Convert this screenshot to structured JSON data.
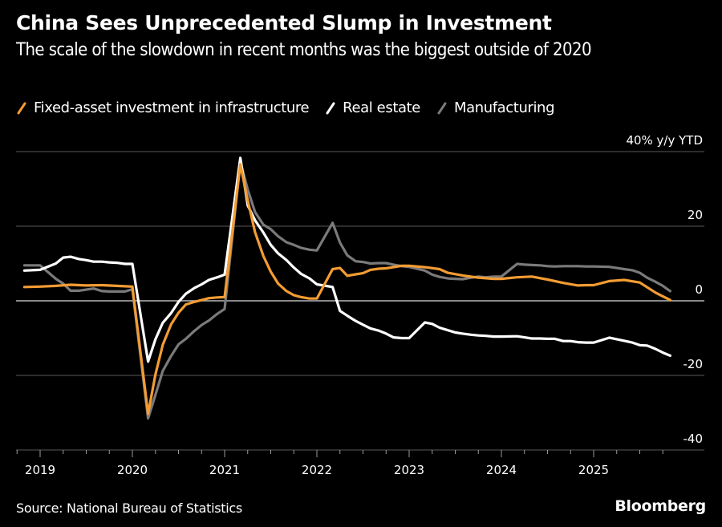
{
  "header": {
    "title": "China Sees Unprecedented Slump in Investment",
    "subtitle": "The scale of the slowdown in recent months was the biggest outside of 2020"
  },
  "footer": {
    "source": "Source: National Bureau of Statistics",
    "brand": "Bloomberg"
  },
  "chart_data": {
    "type": "line",
    "title": "China Sees Unprecedented Slump in Investment",
    "subtitle": "The scale of the slowdown in recent months was the biggest outside of 2020",
    "xlabel": "",
    "ylabel": "% y/y YTD",
    "y_unit_label": "40% y/y YTD",
    "ylim": [
      -40,
      40
    ],
    "y_ticks": [
      40,
      20,
      0,
      -20,
      -40
    ],
    "y_tick_labels": [
      "40% y/y YTD",
      "20",
      "0",
      "-20",
      "-40"
    ],
    "xlim": [
      2018.75,
      2026.1
    ],
    "x_ticks": [
      2019,
      2020,
      2021,
      2022,
      2023,
      2024,
      2025
    ],
    "x_tick_labels": [
      "2019",
      "2020",
      "2021",
      "2022",
      "2023",
      "2024",
      "2025"
    ],
    "grid": true,
    "legend_position": "top-left",
    "series": [
      {
        "name": "Fixed-asset investment in infrastructure",
        "color": "#f39c33",
        "points": [
          [
            2018.83,
            3.7
          ],
          [
            2019.0,
            3.8
          ],
          [
            2019.17,
            4.0
          ],
          [
            2019.33,
            4.3
          ],
          [
            2019.5,
            4.1
          ],
          [
            2019.67,
            4.2
          ],
          [
            2019.83,
            4.0
          ],
          [
            2019.92,
            3.9
          ],
          [
            2020.0,
            3.8
          ],
          [
            2020.17,
            -30.3
          ],
          [
            2020.25,
            -19.7
          ],
          [
            2020.33,
            -11.8
          ],
          [
            2020.42,
            -6.3
          ],
          [
            2020.5,
            -3.2
          ],
          [
            2020.58,
            -1.0
          ],
          [
            2020.67,
            -0.3
          ],
          [
            2020.75,
            0.2
          ],
          [
            2020.83,
            0.7
          ],
          [
            2020.92,
            0.9
          ],
          [
            2021.0,
            1.0
          ],
          [
            2021.17,
            36.6
          ],
          [
            2021.25,
            26.9
          ],
          [
            2021.33,
            18.4
          ],
          [
            2021.42,
            12.0
          ],
          [
            2021.5,
            7.8
          ],
          [
            2021.58,
            4.6
          ],
          [
            2021.67,
            2.6
          ],
          [
            2021.75,
            1.5
          ],
          [
            2021.83,
            1.0
          ],
          [
            2021.92,
            0.6
          ],
          [
            2022.0,
            0.6
          ],
          [
            2022.17,
            8.5
          ],
          [
            2022.25,
            8.8
          ],
          [
            2022.33,
            6.7
          ],
          [
            2022.42,
            7.1
          ],
          [
            2022.5,
            7.4
          ],
          [
            2022.58,
            8.3
          ],
          [
            2022.67,
            8.6
          ],
          [
            2022.75,
            8.7
          ],
          [
            2022.83,
            9.0
          ],
          [
            2022.92,
            9.4
          ],
          [
            2023.0,
            9.4
          ],
          [
            2023.17,
            9.0
          ],
          [
            2023.33,
            8.5
          ],
          [
            2023.42,
            7.5
          ],
          [
            2023.58,
            6.8
          ],
          [
            2023.75,
            6.2
          ],
          [
            2023.92,
            5.9
          ],
          [
            2024.0,
            5.9
          ],
          [
            2024.17,
            6.3
          ],
          [
            2024.33,
            6.5
          ],
          [
            2024.5,
            5.7
          ],
          [
            2024.67,
            4.8
          ],
          [
            2024.83,
            4.1
          ],
          [
            2024.92,
            4.2
          ],
          [
            2025.0,
            4.2
          ],
          [
            2025.17,
            5.3
          ],
          [
            2025.33,
            5.6
          ],
          [
            2025.5,
            4.9
          ],
          [
            2025.67,
            2.2
          ],
          [
            2025.83,
            0.2
          ]
        ]
      },
      {
        "name": "Real estate",
        "color": "#ffffff",
        "points": [
          [
            2018.83,
            8.1
          ],
          [
            2019.0,
            8.3
          ],
          [
            2019.17,
            10.0
          ],
          [
            2019.25,
            11.6
          ],
          [
            2019.33,
            11.8
          ],
          [
            2019.42,
            11.2
          ],
          [
            2019.5,
            10.9
          ],
          [
            2019.58,
            10.5
          ],
          [
            2019.67,
            10.5
          ],
          [
            2019.75,
            10.3
          ],
          [
            2019.83,
            10.2
          ],
          [
            2019.92,
            9.9
          ],
          [
            2020.0,
            9.9
          ],
          [
            2020.17,
            -16.3
          ],
          [
            2020.25,
            -10.3
          ],
          [
            2020.33,
            -5.9
          ],
          [
            2020.42,
            -3.3
          ],
          [
            2020.5,
            -0.3
          ],
          [
            2020.58,
            1.9
          ],
          [
            2020.67,
            3.4
          ],
          [
            2020.75,
            4.4
          ],
          [
            2020.83,
            5.6
          ],
          [
            2020.92,
            6.3
          ],
          [
            2021.0,
            7.0
          ],
          [
            2021.17,
            38.3
          ],
          [
            2021.25,
            25.6
          ],
          [
            2021.33,
            21.6
          ],
          [
            2021.42,
            18.3
          ],
          [
            2021.5,
            15.0
          ],
          [
            2021.58,
            12.7
          ],
          [
            2021.67,
            10.9
          ],
          [
            2021.75,
            8.9
          ],
          [
            2021.83,
            7.2
          ],
          [
            2021.92,
            6.0
          ],
          [
            2022.0,
            4.4
          ],
          [
            2022.17,
            3.7
          ],
          [
            2022.25,
            -2.7
          ],
          [
            2022.33,
            -4.0
          ],
          [
            2022.42,
            -5.4
          ],
          [
            2022.5,
            -6.4
          ],
          [
            2022.58,
            -7.4
          ],
          [
            2022.67,
            -8.0
          ],
          [
            2022.75,
            -8.8
          ],
          [
            2022.83,
            -9.8
          ],
          [
            2022.92,
            -10.0
          ],
          [
            2023.0,
            -10.0
          ],
          [
            2023.17,
            -5.8
          ],
          [
            2023.25,
            -6.2
          ],
          [
            2023.33,
            -7.2
          ],
          [
            2023.42,
            -7.9
          ],
          [
            2023.5,
            -8.5
          ],
          [
            2023.58,
            -8.8
          ],
          [
            2023.67,
            -9.1
          ],
          [
            2023.75,
            -9.3
          ],
          [
            2023.83,
            -9.4
          ],
          [
            2023.92,
            -9.6
          ],
          [
            2024.0,
            -9.6
          ],
          [
            2024.17,
            -9.5
          ],
          [
            2024.25,
            -9.8
          ],
          [
            2024.33,
            -10.1
          ],
          [
            2024.42,
            -10.1
          ],
          [
            2024.5,
            -10.2
          ],
          [
            2024.58,
            -10.2
          ],
          [
            2024.67,
            -10.8
          ],
          [
            2024.75,
            -10.8
          ],
          [
            2024.83,
            -11.1
          ],
          [
            2024.92,
            -11.2
          ],
          [
            2025.0,
            -11.2
          ],
          [
            2025.17,
            -9.9
          ],
          [
            2025.25,
            -10.3
          ],
          [
            2025.33,
            -10.7
          ],
          [
            2025.42,
            -11.2
          ],
          [
            2025.5,
            -11.9
          ],
          [
            2025.58,
            -12.0
          ],
          [
            2025.67,
            -12.9
          ],
          [
            2025.75,
            -13.9
          ],
          [
            2025.83,
            -14.7
          ]
        ]
      },
      {
        "name": "Manufacturing",
        "color": "#7a7a7a",
        "points": [
          [
            2018.83,
            9.5
          ],
          [
            2019.0,
            9.5
          ],
          [
            2019.17,
            5.9
          ],
          [
            2019.25,
            4.6
          ],
          [
            2019.33,
            2.7
          ],
          [
            2019.42,
            2.7
          ],
          [
            2019.5,
            3.0
          ],
          [
            2019.58,
            3.3
          ],
          [
            2019.67,
            2.6
          ],
          [
            2019.75,
            2.5
          ],
          [
            2019.83,
            2.5
          ],
          [
            2019.92,
            2.5
          ],
          [
            2020.0,
            3.1
          ],
          [
            2020.17,
            -31.5
          ],
          [
            2020.25,
            -25.2
          ],
          [
            2020.33,
            -18.8
          ],
          [
            2020.42,
            -14.8
          ],
          [
            2020.5,
            -11.7
          ],
          [
            2020.58,
            -10.2
          ],
          [
            2020.67,
            -8.1
          ],
          [
            2020.75,
            -6.5
          ],
          [
            2020.83,
            -5.3
          ],
          [
            2020.92,
            -3.5
          ],
          [
            2021.0,
            -2.2
          ],
          [
            2021.17,
            37.3
          ],
          [
            2021.25,
            29.8
          ],
          [
            2021.33,
            23.8
          ],
          [
            2021.42,
            20.4
          ],
          [
            2021.5,
            19.2
          ],
          [
            2021.58,
            17.3
          ],
          [
            2021.67,
            15.7
          ],
          [
            2021.75,
            15.0
          ],
          [
            2021.83,
            14.2
          ],
          [
            2021.92,
            13.7
          ],
          [
            2022.0,
            13.5
          ],
          [
            2022.17,
            20.9
          ],
          [
            2022.25,
            15.6
          ],
          [
            2022.33,
            12.2
          ],
          [
            2022.42,
            10.6
          ],
          [
            2022.5,
            10.4
          ],
          [
            2022.58,
            10.0
          ],
          [
            2022.67,
            10.1
          ],
          [
            2022.75,
            10.1
          ],
          [
            2022.83,
            9.7
          ],
          [
            2022.92,
            9.3
          ],
          [
            2023.0,
            9.1
          ],
          [
            2023.17,
            8.1
          ],
          [
            2023.25,
            7.0
          ],
          [
            2023.33,
            6.4
          ],
          [
            2023.42,
            6.0
          ],
          [
            2023.5,
            5.9
          ],
          [
            2023.58,
            5.8
          ],
          [
            2023.67,
            6.2
          ],
          [
            2023.75,
            6.5
          ],
          [
            2023.83,
            6.3
          ],
          [
            2023.92,
            6.5
          ],
          [
            2024.0,
            6.5
          ],
          [
            2024.17,
            9.9
          ],
          [
            2024.25,
            9.7
          ],
          [
            2024.33,
            9.6
          ],
          [
            2024.42,
            9.5
          ],
          [
            2024.5,
            9.3
          ],
          [
            2024.58,
            9.2
          ],
          [
            2024.67,
            9.3
          ],
          [
            2024.75,
            9.3
          ],
          [
            2024.83,
            9.3
          ],
          [
            2024.92,
            9.2
          ],
          [
            2025.0,
            9.2
          ],
          [
            2025.17,
            9.1
          ],
          [
            2025.25,
            8.8
          ],
          [
            2025.33,
            8.5
          ],
          [
            2025.42,
            8.2
          ],
          [
            2025.5,
            7.5
          ],
          [
            2025.58,
            6.2
          ],
          [
            2025.67,
            5.1
          ],
          [
            2025.75,
            4.0
          ],
          [
            2025.83,
            2.6
          ]
        ]
      }
    ]
  }
}
